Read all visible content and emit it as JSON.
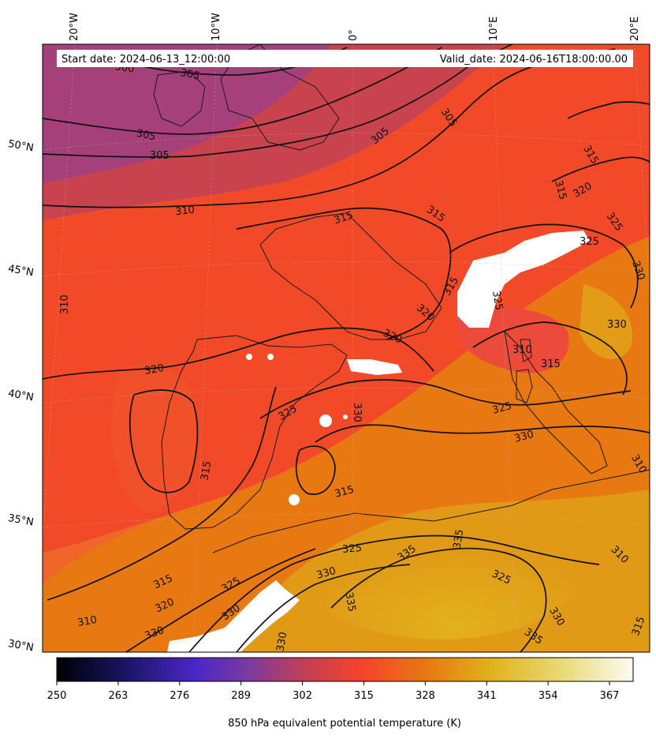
{
  "header": {
    "start_date": "Start date: 2024-06-13_12:00:00",
    "valid_date": "Valid_date: 2024-06-16T18:00:00.00"
  },
  "map": {
    "longitude_labels": [
      "20°W",
      "10°W",
      "0°",
      "10°E",
      "20°E"
    ],
    "latitude_labels": [
      "50°N",
      "45°N",
      "40°N",
      "35°N",
      "30°N"
    ],
    "contour_labels": [
      "300",
      "305",
      "305",
      "305",
      "305",
      "305",
      "310",
      "310",
      "310",
      "310",
      "315",
      "315",
      "315",
      "315",
      "315",
      "315",
      "315",
      "315",
      "315",
      "320",
      "320",
      "320",
      "320",
      "320",
      "325",
      "325",
      "325",
      "325",
      "325",
      "325",
      "325",
      "330",
      "330",
      "330",
      "330",
      "330",
      "330",
      "330",
      "330",
      "330",
      "335",
      "335",
      "335",
      "335",
      "310",
      "310",
      "315",
      "325"
    ],
    "colors": {
      "cool": "#a8407a",
      "mid": "#f24a28",
      "warm": "#e77a10",
      "hot": "#e0a81c",
      "missing": "#ffffff"
    }
  },
  "colorbar": {
    "ticks": [
      "250",
      "263",
      "276",
      "289",
      "302",
      "315",
      "328",
      "341",
      "354",
      "367"
    ],
    "label": "850 hPa equivalent potential temperature (K)",
    "range": [
      250,
      372
    ],
    "colormap": "CMRmap-like"
  }
}
